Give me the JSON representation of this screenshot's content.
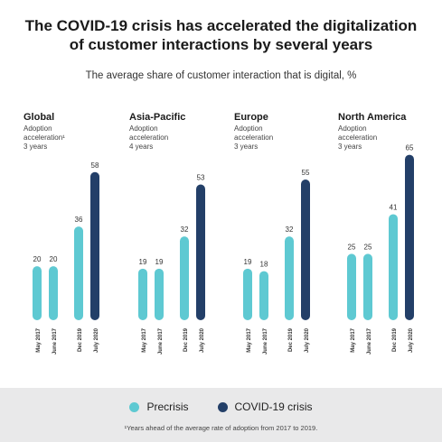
{
  "colors": {
    "precrisis": "#5ec9d2",
    "covid": "#233f68"
  },
  "chart_data": {
    "type": "bar",
    "title": "The COVID-19 crisis has accelerated the digitalization of customer interactions by several years",
    "subtitle": "The average share of customer interaction that is digital, %",
    "categories": [
      "May 2017",
      "June 2017",
      "Dec 2019",
      "July 2020"
    ],
    "series_names": [
      "Precrisis",
      "COVID-19 crisis"
    ],
    "panels": [
      {
        "region": "Global",
        "note_line1": "Adoption",
        "note_line2": "acceleration¹",
        "note_line3": "3 years",
        "values": [
          20,
          20,
          36,
          58
        ]
      },
      {
        "region": "Asia-Pacific",
        "note_line1": "Adoption",
        "note_line2": "acceleration",
        "note_line3": "4 years",
        "values": [
          19,
          19,
          32,
          53
        ]
      },
      {
        "region": "Europe",
        "note_line1": "Adoption",
        "note_line2": "acceleration",
        "note_line3": "3 years",
        "values": [
          19,
          18,
          32,
          55
        ]
      },
      {
        "region": "North America",
        "note_line1": "Adoption",
        "note_line2": "acceleration",
        "note_line3": "3 years",
        "values": [
          25,
          25,
          41,
          65
        ]
      }
    ]
  },
  "legend": {
    "precrisis": "Precrisis",
    "covid": "COVID-19 crisis"
  },
  "footnote": "¹Years ahead of the average rate of adoption from 2017 to 2019."
}
